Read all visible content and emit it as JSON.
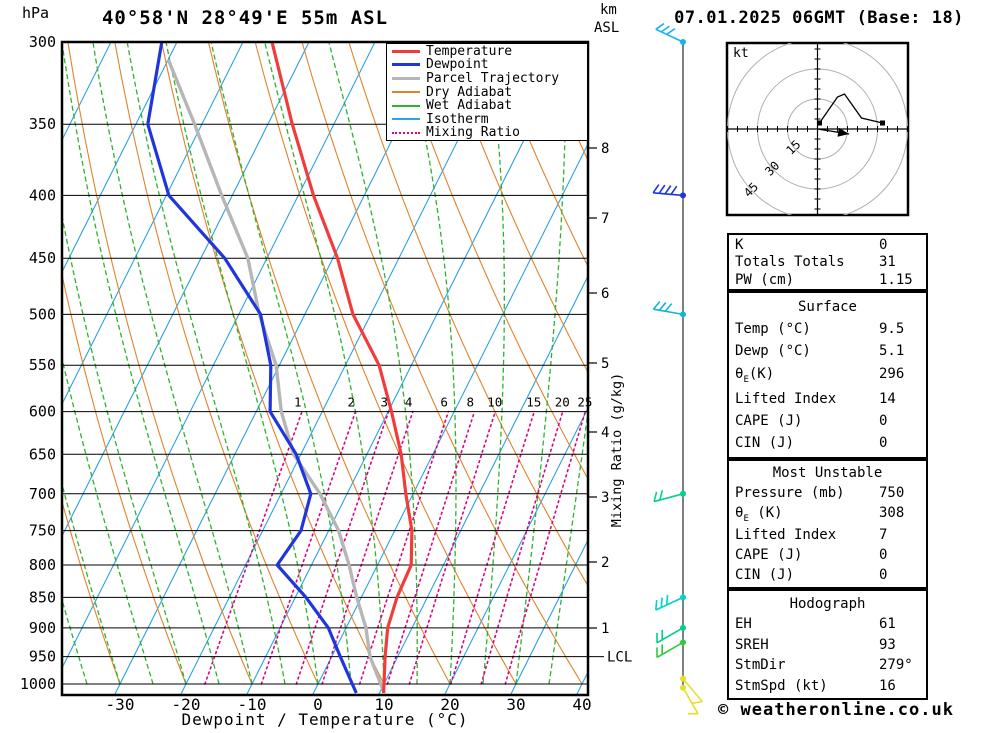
{
  "header": {
    "y_axis_unit": "hPa",
    "title": "40°58'N 28°49'E 55m ASL",
    "altitude_axis_unit": [
      "km",
      "ASL"
    ],
    "datetime": "07.01.2025 06GMT (Base: 18)"
  },
  "legend": [
    {
      "label": "Temperature",
      "color": "#f23c3c",
      "thick": 3,
      "dotted": false
    },
    {
      "label": "Dewpoint",
      "color": "#2135dc",
      "thick": 3,
      "dotted": false
    },
    {
      "label": "Parcel Trajectory",
      "color": "#b6b6b6",
      "thick": 3,
      "dotted": false
    },
    {
      "label": "Dry Adiabat",
      "color": "#e0832d",
      "thick": 1,
      "dotted": false
    },
    {
      "label": "Wet Adiabat",
      "color": "#2cb32c",
      "thick": 1,
      "dotted": false
    },
    {
      "label": "Isotherm",
      "color": "#2ea4e6",
      "thick": 1,
      "dotted": false
    },
    {
      "label": "Mixing Ratio",
      "color": "#e0007f",
      "thick": 2,
      "dotted": true
    }
  ],
  "axes": {
    "pressure_ticks": [
      300,
      350,
      400,
      450,
      500,
      550,
      600,
      650,
      700,
      750,
      800,
      850,
      900,
      950,
      1000
    ],
    "temp_ticks": [
      -30,
      -20,
      -10,
      0,
      10,
      20,
      30,
      40
    ],
    "x_axis_label": "Dewpoint / Temperature (°C)",
    "km_ticks": [
      8,
      7,
      6,
      5,
      4,
      3,
      2,
      1
    ],
    "lcl_label": "LCL",
    "right_axis_label": "Mixing Ratio (g/kg)",
    "mixing_ratio_labels": [
      1,
      2,
      3,
      4,
      6,
      8,
      10,
      15,
      20,
      25
    ]
  },
  "hodograph": {
    "unit": "kt",
    "rings_kt": [
      15,
      30,
      45
    ],
    "trace_kt": [
      [
        1,
        3
      ],
      [
        10,
        16
      ],
      [
        13.5,
        17.5
      ],
      [
        22,
        5.5
      ],
      [
        32.5,
        3
      ]
    ],
    "storm_motion_kt": [
      15.8,
      -2.5
    ]
  },
  "tables": [
    {
      "header": null,
      "rows": [
        [
          "K",
          "0"
        ],
        [
          "Totals Totals",
          "31"
        ],
        [
          "PW (cm)",
          "1.15"
        ]
      ]
    },
    {
      "header": "Surface",
      "rows": [
        [
          "Temp (°C)",
          "9.5"
        ],
        [
          "Dewp (°C)",
          "5.1"
        ],
        [
          "θE(K)",
          "296"
        ],
        [
          "Lifted Index",
          "14"
        ],
        [
          "CAPE (J)",
          "0"
        ],
        [
          "CIN (J)",
          "0"
        ]
      ]
    },
    {
      "header": "Most Unstable",
      "rows": [
        [
          "Pressure (mb)",
          "750"
        ],
        [
          "θE (K)",
          "308"
        ],
        [
          "Lifted Index",
          "7"
        ],
        [
          "CAPE (J)",
          "0"
        ],
        [
          "CIN (J)",
          "0"
        ]
      ]
    },
    {
      "header": "Hodograph",
      "rows": [
        [
          "EH",
          "61"
        ],
        [
          "SREH",
          "93"
        ],
        [
          "StmDir",
          "279°"
        ],
        [
          "StmSpd (kt)",
          "16"
        ]
      ]
    }
  ],
  "footer": {
    "copyright": "© weatheronline.co.uk"
  },
  "colors": {
    "temperature": "#f23c3c",
    "dewpoint": "#2135dc",
    "parcel": "#b6b6b6",
    "dry_adiabat": "#e0832d",
    "wet_adiabat": "#2cb32c",
    "isotherm": "#2ea4e6",
    "mixing_ratio": "#e0007f",
    "axis": "#000000",
    "hodograph_ring": "#b0b0b0"
  },
  "chart_data": {
    "type": "skew-t-log-p-sounding",
    "pressure_hpa": [
      1000,
      950,
      900,
      850,
      800,
      750,
      700,
      650,
      600,
      550,
      500,
      450,
      400,
      350,
      300
    ],
    "series": [
      {
        "name": "Temperature",
        "unit": "°C",
        "values": [
          10.0,
          8.1,
          6.3,
          5.4,
          5.1,
          2.6,
          -1.1,
          -4.8,
          -9.5,
          -14.9,
          -22.7,
          -29.3,
          -37.7,
          -46.3,
          -55.6
        ]
      },
      {
        "name": "Dewpoint",
        "unit": "°C",
        "values": [
          5.2,
          1.3,
          -2.7,
          -8.4,
          -15.2,
          -14.2,
          -15.5,
          -20.7,
          -27.9,
          -31.3,
          -36.7,
          -46.4,
          -59.6,
          -68.2,
          -72.3
        ]
      },
      {
        "name": "Parcel Trajectory",
        "unit": "°C",
        "values": [
          9.5,
          5.8,
          3.0,
          -0.7,
          -4.3,
          -8.5,
          -14.1,
          -21.1,
          -26.2,
          -30.5,
          -36.9,
          -42.9,
          -51.6,
          -61.1,
          null
        ],
        "top_point": {
          "pressure_hpa": 310,
          "value": -70.0
        }
      }
    ],
    "x_axis": {
      "label": "Dewpoint / Temperature (°C)",
      "range_c": [
        -40,
        41
      ],
      "skew": "isotherms 45 deg"
    },
    "y_axis": {
      "label": "hPa",
      "range_hpa": [
        300,
        1000
      ],
      "scale": "log"
    },
    "mixing_ratio_lines_g_kg": [
      1,
      2,
      3,
      4,
      6,
      8,
      10,
      15,
      20,
      25
    ],
    "isotherm_step_c": 10,
    "dry_adiabat_step_c": 10,
    "wet_adiabat_step_c": 5,
    "lcl_pressure_hpa": 950,
    "wind_barbs": [
      {
        "pressure_hpa": 300,
        "from_deg": 295,
        "barbs": 3,
        "color": "#18b2ee"
      },
      {
        "pressure_hpa": 400,
        "from_deg": 275,
        "barbs": 4,
        "color": "#1f35e0"
      },
      {
        "pressure_hpa": 500,
        "from_deg": 280,
        "barbs": 3,
        "color": "#12b4dc"
      },
      {
        "pressure_hpa": 700,
        "from_deg": 255,
        "barbs": 2,
        "color": "#00d28c"
      },
      {
        "pressure_hpa": 850,
        "from_deg": 245,
        "barbs": 3,
        "color": "#00d2cc"
      },
      {
        "pressure_hpa": 900,
        "from_deg": 240,
        "barbs": 2,
        "color": "#00cc8c"
      },
      {
        "pressure_hpa": 925,
        "from_deg": 240,
        "barbs": 2,
        "color": "#2ccc3c"
      },
      {
        "pressure_hpa": 990,
        "from_deg": 140,
        "barbs": 1,
        "color": "#e6df2a"
      },
      {
        "pressure_hpa": 1007,
        "from_deg": 150,
        "barbs": 1,
        "color": "#e6df2a"
      }
    ],
    "hodograph_trace_kt": [
      [
        1,
        3
      ],
      [
        10,
        16
      ],
      [
        13.5,
        17.5
      ],
      [
        22,
        5.5
      ],
      [
        32.5,
        3
      ]
    ],
    "storm_motion_kt": [
      15.8,
      -2.5
    ]
  }
}
